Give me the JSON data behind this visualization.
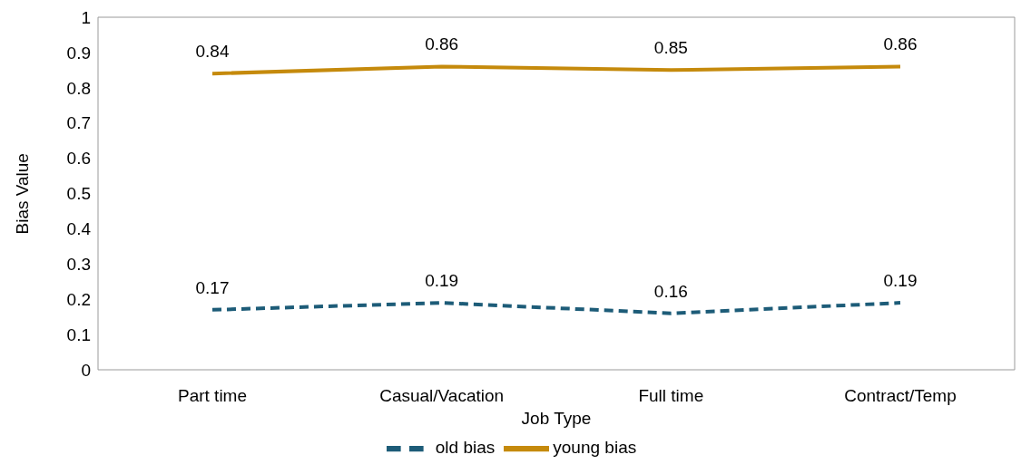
{
  "chart_data": {
    "type": "line",
    "xlabel": "Job Type",
    "ylabel": "Bias Value",
    "categories": [
      "Part time",
      "Casual/Vacation",
      "Full time",
      "Contract/Temp"
    ],
    "series": [
      {
        "name": "old bias",
        "color": "#1d5c78",
        "values": [
          0.17,
          0.19,
          0.16,
          0.19
        ],
        "line_style": "dashed"
      },
      {
        "name": "young bias",
        "color": "#c58a0c",
        "values": [
          0.84,
          0.86,
          0.85,
          0.86
        ],
        "line_style": "solid"
      }
    ],
    "ylim": [
      0,
      1
    ],
    "yticks": [
      0,
      0.1,
      0.2,
      0.3,
      0.4,
      0.5,
      0.6,
      0.7,
      0.8,
      0.9,
      1
    ],
    "data_labels": true,
    "legend": "bottom",
    "grid": false,
    "marker": "none"
  }
}
